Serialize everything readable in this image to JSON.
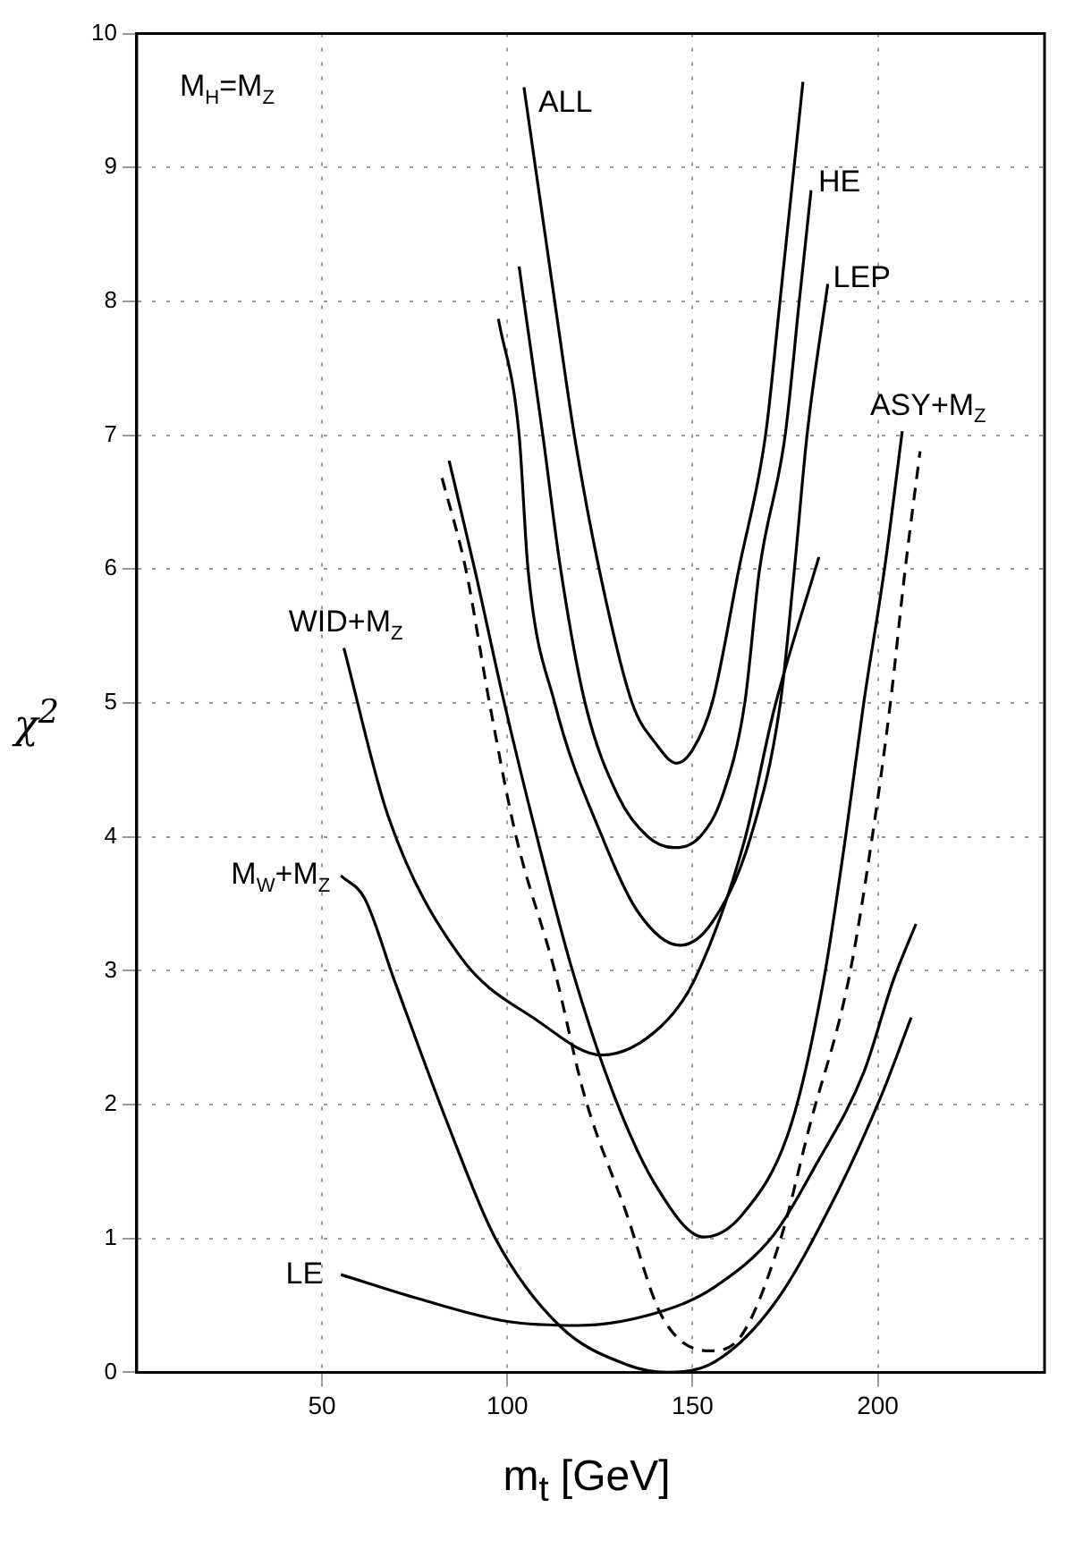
{
  "chart_data": {
    "type": "line",
    "xlabel": "m$_{t}$  [GeV]",
    "ylabel": "χ$^{2}$",
    "xlim": [
      0,
      245
    ],
    "xticks": [
      50,
      100,
      150,
      200
    ],
    "ylim": [
      0,
      10
    ],
    "yticks": [
      0,
      1,
      2,
      3,
      4,
      5,
      6,
      7,
      8,
      9,
      10
    ],
    "grid": true,
    "legend": false,
    "marker": "none",
    "series": [
      {
        "name": "ALL",
        "color": "#000000",
        "line_style": "solid",
        "x": [
          104.5,
          112.8,
          118.1,
          124.8,
          133.7,
          140,
          145.7,
          150,
          155.3,
          162.5,
          169.7,
          173.6,
          179.8
        ],
        "values": [
          9.6,
          8,
          7,
          6,
          5,
          4.7,
          4.55,
          4.65,
          5,
          6,
          7,
          8,
          9.64
        ]
      },
      {
        "name": "HE",
        "color": "#000000",
        "line_style": "solid",
        "x": [
          103.2,
          104.5,
          109.6,
          114.4,
          121,
          130,
          138,
          145,
          152,
          158,
          164.1,
          168.1,
          175,
          178.8,
          182
        ],
        "values": [
          8.26,
          8,
          7,
          6,
          5,
          4.3,
          4.0,
          3.92,
          4.0,
          4.3,
          5,
          6,
          7,
          8,
          8.83
        ]
      },
      {
        "name": "LEP",
        "color": "#000000",
        "line_style": "solid",
        "x": [
          97.6,
          103.2,
          105.6,
          112.8,
          125.6,
          135,
          146.5,
          155,
          165.7,
          173.7,
          177.5,
          180.9,
          186.5
        ],
        "values": [
          7.87,
          7,
          6,
          5,
          4,
          3.45,
          3.19,
          3.35,
          4,
          5,
          6,
          7,
          8.13
        ]
      },
      {
        "name": "ASY+M$_{Z}$",
        "color": "#000000",
        "line_style": "solid",
        "x": [
          84.3,
          91.2,
          99.2,
          108,
          117.6,
          128.8,
          140,
          153.1,
          163.5,
          176.6,
          185.4,
          191.3,
          196.2,
          201.8,
          206.6
        ],
        "values": [
          6.81,
          6,
          5,
          4,
          3,
          2.07,
          1.4,
          1.01,
          1.18,
          1.85,
          2.93,
          4,
          5,
          6,
          7.03
        ]
      },
      {
        "color": "#000000",
        "line_style": "dashed",
        "x": [
          82.4,
          88.8,
          95.2,
          102.4,
          112.8,
          120.8,
          132,
          141.7,
          154.5,
          162.5,
          173.7,
          181.7,
          192.1,
          198.5,
          203.4,
          207.4,
          211.4
        ],
        "values": [
          6.68,
          6,
          5,
          4,
          3,
          2.07,
          1.2,
          0.42,
          0.16,
          0.25,
          0.99,
          1.85,
          2.93,
          4,
          5,
          6,
          6.88
        ]
      },
      {
        "name": "WID+M$_{Z}$",
        "color": "#000000",
        "line_style": "solid",
        "x": [
          55.9,
          67.9,
          87.2,
          108,
          125.6,
          141.7,
          150.5,
          164,
          172.1,
          184.1
        ],
        "values": [
          5.41,
          4.15,
          3.11,
          2.63,
          2.37,
          2.59,
          2.93,
          3.97,
          4.96,
          6.09
        ]
      },
      {
        "name": "M$_{W}$+M$_{Z}$",
        "color": "#000000",
        "line_style": "solid",
        "x": [
          55.1,
          61.5,
          69.5,
          84,
          96.8,
          114.4,
          132,
          143.3,
          156.1,
          172,
          188.1,
          201,
          209
        ],
        "values": [
          3.71,
          3.54,
          2.93,
          1.85,
          1,
          0.34,
          0.06,
          0,
          0.08,
          0.51,
          1.29,
          2.07,
          2.65
        ]
      },
      {
        "name": "LE",
        "color": "#000000",
        "line_style": "solid",
        "x": [
          55.1,
          76,
          100,
          119.2,
          143.3,
          156.1,
          172,
          183.3,
          196.2,
          204.2,
          210.3
        ],
        "values": [
          0.73,
          0.55,
          0.38,
          0.35,
          0.47,
          0.64,
          1.03,
          1.55,
          2.24,
          2.93,
          3.35
        ]
      }
    ],
    "annotations": [
      "M$_{H}$=M$_{Z}$"
    ]
  }
}
